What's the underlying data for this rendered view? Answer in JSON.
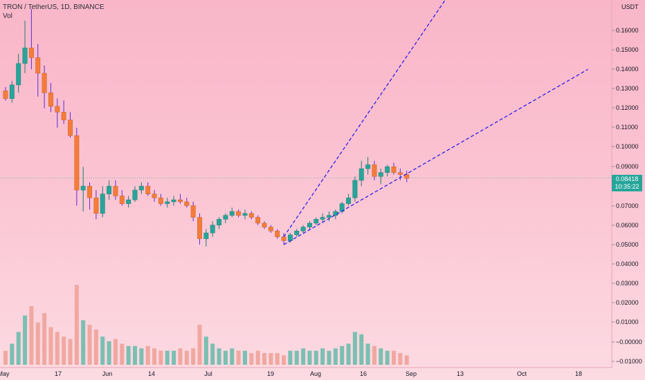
{
  "header": {
    "symbol_line": "TRON / TetherUS, 1D, BINANCE",
    "volume_label": "Vol"
  },
  "price_tag": {
    "price": "0.08418",
    "countdown": "10:35:22"
  },
  "colors": {
    "up": "#26a69a",
    "down": "#f57c3a",
    "volume_up": "#7bbfb2",
    "volume_down": "#f0a8a0",
    "trendline": "#2c1ee6"
  },
  "chart_data": {
    "type": "candlestick",
    "currency_label": "USDT",
    "y_ticks": [
      "0.16000",
      "0.15000",
      "0.14000",
      "0.13000",
      "0.12000",
      "0.11000",
      "0.10000",
      "0.09000",
      "0.07000",
      "0.06000",
      "0.05000",
      "0.04000",
      "0.03000",
      "0.02000",
      "0.01000",
      "−0.00000",
      "−0.01000"
    ],
    "x_ticks": [
      "May",
      "17",
      "Jun",
      "14",
      "Jul",
      "19",
      "Aug",
      "16",
      "Sep",
      "13",
      "Oct",
      "18"
    ],
    "last_price": 0.08418,
    "price_range": [
      0.045,
      0.16
    ],
    "candles": [
      [
        0.129,
        0.131,
        0.124,
        0.125
      ],
      [
        0.125,
        0.134,
        0.123,
        0.132
      ],
      [
        0.132,
        0.148,
        0.128,
        0.143
      ],
      [
        0.143,
        0.165,
        0.138,
        0.151
      ],
      [
        0.151,
        0.171,
        0.14,
        0.146
      ],
      [
        0.146,
        0.153,
        0.126,
        0.138
      ],
      [
        0.138,
        0.142,
        0.12,
        0.128
      ],
      [
        0.128,
        0.133,
        0.118,
        0.121
      ],
      [
        0.121,
        0.125,
        0.11,
        0.118
      ],
      [
        0.118,
        0.124,
        0.112,
        0.114
      ],
      [
        0.114,
        0.118,
        0.105,
        0.106
      ],
      [
        0.106,
        0.11,
        0.07,
        0.078
      ],
      [
        0.078,
        0.09,
        0.067,
        0.08
      ],
      [
        0.08,
        0.082,
        0.068,
        0.074
      ],
      [
        0.074,
        0.078,
        0.063,
        0.066
      ],
      [
        0.066,
        0.08,
        0.064,
        0.076
      ],
      [
        0.076,
        0.083,
        0.073,
        0.08
      ],
      [
        0.08,
        0.083,
        0.073,
        0.075
      ],
      [
        0.075,
        0.078,
        0.07,
        0.071
      ],
      [
        0.071,
        0.075,
        0.069,
        0.073
      ],
      [
        0.073,
        0.08,
        0.072,
        0.078
      ],
      [
        0.078,
        0.082,
        0.076,
        0.08
      ],
      [
        0.08,
        0.082,
        0.075,
        0.076
      ],
      [
        0.076,
        0.078,
        0.072,
        0.074
      ],
      [
        0.074,
        0.076,
        0.07,
        0.071
      ],
      [
        0.071,
        0.074,
        0.069,
        0.072
      ],
      [
        0.072,
        0.075,
        0.07,
        0.073
      ],
      [
        0.073,
        0.076,
        0.071,
        0.072
      ],
      [
        0.072,
        0.074,
        0.069,
        0.07
      ],
      [
        0.07,
        0.072,
        0.062,
        0.064
      ],
      [
        0.064,
        0.066,
        0.05,
        0.053
      ],
      [
        0.053,
        0.058,
        0.049,
        0.056
      ],
      [
        0.056,
        0.062,
        0.054,
        0.06
      ],
      [
        0.06,
        0.064,
        0.058,
        0.063
      ],
      [
        0.063,
        0.066,
        0.061,
        0.065
      ],
      [
        0.065,
        0.069,
        0.064,
        0.067
      ],
      [
        0.067,
        0.068,
        0.064,
        0.065
      ],
      [
        0.065,
        0.068,
        0.063,
        0.066
      ],
      [
        0.066,
        0.067,
        0.063,
        0.064
      ],
      [
        0.064,
        0.065,
        0.06,
        0.061
      ],
      [
        0.061,
        0.062,
        0.058,
        0.059
      ],
      [
        0.059,
        0.06,
        0.056,
        0.057
      ],
      [
        0.057,
        0.058,
        0.053,
        0.054
      ],
      [
        0.054,
        0.056,
        0.05,
        0.052
      ],
      [
        0.052,
        0.056,
        0.051,
        0.055
      ],
      [
        0.055,
        0.058,
        0.054,
        0.057
      ],
      [
        0.057,
        0.06,
        0.056,
        0.059
      ],
      [
        0.059,
        0.062,
        0.058,
        0.061
      ],
      [
        0.061,
        0.064,
        0.06,
        0.063
      ],
      [
        0.063,
        0.066,
        0.061,
        0.064
      ],
      [
        0.064,
        0.067,
        0.062,
        0.065
      ],
      [
        0.065,
        0.068,
        0.063,
        0.067
      ],
      [
        0.067,
        0.072,
        0.066,
        0.071
      ],
      [
        0.071,
        0.076,
        0.07,
        0.074
      ],
      [
        0.074,
        0.085,
        0.072,
        0.083
      ],
      [
        0.083,
        0.093,
        0.08,
        0.089
      ],
      [
        0.089,
        0.095,
        0.086,
        0.091
      ],
      [
        0.091,
        0.093,
        0.083,
        0.085
      ],
      [
        0.085,
        0.089,
        0.081,
        0.087
      ],
      [
        0.087,
        0.091,
        0.085,
        0.09
      ],
      [
        0.09,
        0.092,
        0.086,
        0.087
      ],
      [
        0.087,
        0.089,
        0.083,
        0.086
      ],
      [
        0.086,
        0.088,
        0.082,
        0.084
      ]
    ],
    "volumes": [
      6,
      9,
      14,
      21,
      25,
      18,
      22,
      16,
      14,
      12,
      11,
      34,
      19,
      17,
      15,
      12,
      10,
      11,
      9,
      8,
      8,
      7,
      8,
      7,
      6,
      6,
      6,
      7,
      6,
      7,
      17,
      12,
      9,
      7,
      6,
      7,
      6,
      6,
      5,
      6,
      5,
      5,
      5,
      4,
      6,
      6,
      7,
      6,
      6,
      7,
      6,
      7,
      8,
      9,
      14,
      13,
      9,
      8,
      7,
      6,
      6,
      5,
      4
    ],
    "trendlines": [
      {
        "name": "upper-channel",
        "points": [
          [
            43,
            0.054
          ],
          [
            75,
            0.21
          ]
        ]
      },
      {
        "name": "lower-channel",
        "points": [
          [
            43,
            0.05
          ],
          [
            90,
            0.14
          ]
        ]
      }
    ]
  }
}
